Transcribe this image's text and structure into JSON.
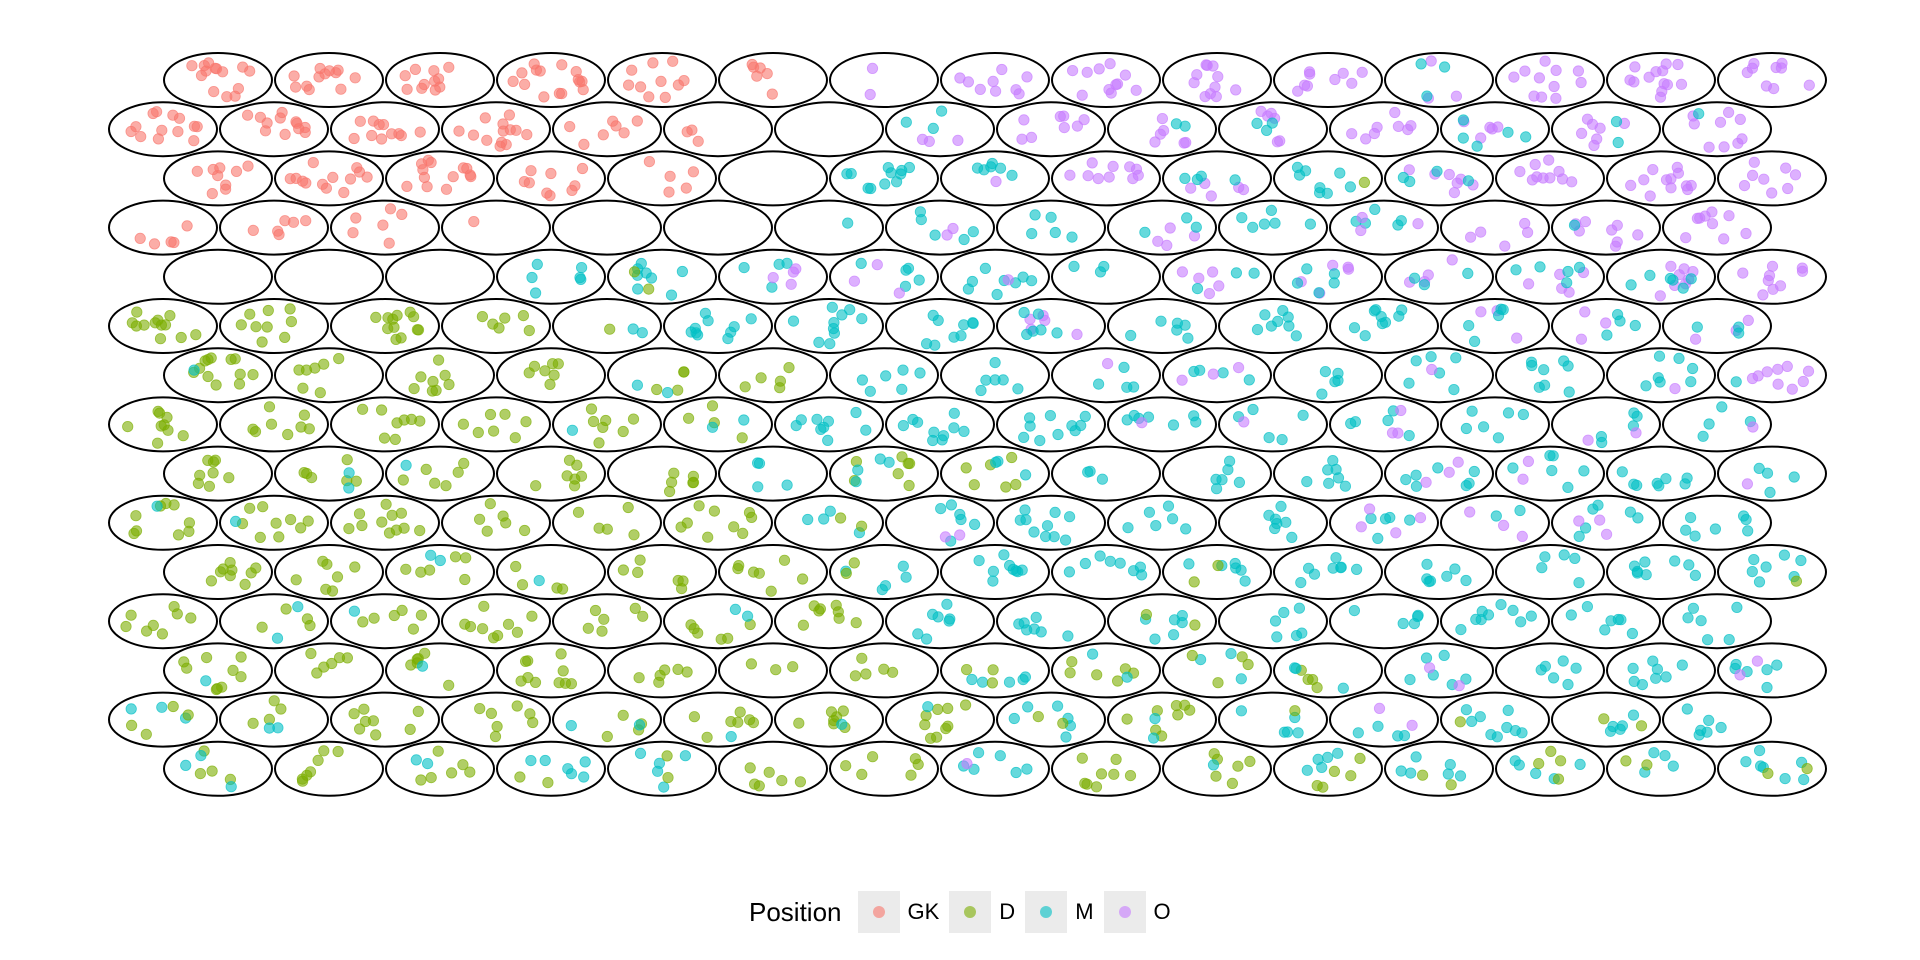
{
  "chart_data": {
    "type": "scatter",
    "subtype": "hexagonal grid of elliptical cells with jittered points",
    "grid": {
      "rows": 15,
      "columns_odd_rows": 15,
      "columns_even_rows": 15
    },
    "legend": {
      "title": "Position",
      "placement": "bottom",
      "entries": [
        {
          "key": "GK",
          "label": "GK",
          "color": "#F8766D"
        },
        {
          "key": "D",
          "label": "D",
          "color": "#7CAE00"
        },
        {
          "key": "M",
          "label": "M",
          "color": "#00BFC4"
        },
        {
          "key": "O",
          "label": "O",
          "color": "#C77CFF"
        }
      ]
    },
    "cells": [
      [
        "G14",
        "G12",
        "G11",
        "G15",
        "G10",
        "G6",
        "O2",
        "O9",
        "O11",
        "O11",
        "O9",
        "O3M3",
        "O11",
        "O13",
        "O9"
      ],
      [
        "G13",
        "G12",
        "G11",
        "G13",
        "G7",
        "G3",
        "",
        "M3O3",
        "O8",
        "O6M2",
        "O6M3",
        "O8",
        "O5M5",
        "O7M2",
        "O9M1"
      ],
      [
        "G9",
        "G13",
        "G13",
        "G9",
        "G5",
        "",
        "M11",
        "M6O1",
        "O10",
        "O5M4",
        "M8D1",
        "O7M4",
        "O10",
        "O12",
        "O8"
      ],
      [
        "G5",
        "G6",
        "G6",
        "G1",
        "",
        "",
        "M1",
        "M5O2",
        "M5",
        "O4M3",
        "M6",
        "M5O3",
        "O5",
        "O8M1",
        "O9"
      ],
      [
        "",
        "",
        "",
        "M6",
        "M8D2",
        "M4O4",
        "M5O3",
        "M8O1",
        "M3",
        "O5M3",
        "O5M5",
        "O4M3",
        "O5M5",
        "O8M6",
        "O9"
      ],
      [
        "D12",
        "D9",
        "D12",
        "D6",
        "M2D1",
        "M10",
        "M10",
        "M9",
        "O5M6",
        "M6",
        "M8",
        "M9",
        "O3M5",
        "M4O3",
        "O3M3"
      ],
      [
        "D12M1",
        "D7",
        "D8",
        "D7",
        "D4M2",
        "D5",
        "M6",
        "M6",
        "M4O1",
        "M4O3",
        "M5",
        "M6O1",
        "M8",
        "M7O1",
        "O9M1"
      ],
      [
        "D9",
        "D8",
        "D8",
        "D7",
        "D7M1",
        "D4M2",
        "M9",
        "M10",
        "M10",
        "M7O1",
        "M5O1",
        "M5O3",
        "M6",
        "M5O2",
        "M4O1"
      ],
      [
        "D8",
        "D6M2",
        "D6M1",
        "D7",
        "D6",
        "M4",
        "D7M4",
        "D6M3",
        "M3",
        "M6",
        "M7",
        "M7O3",
        "M6O2",
        "M8",
        "M4O1"
      ],
      [
        "D9M1",
        "D9M1",
        "D11",
        "D6",
        "D5",
        "D9",
        "M4D2",
        "M6O2",
        "M10",
        "M6",
        "M7",
        "M5O4",
        "O3M2",
        "M6O3",
        "M7"
      ],
      [
        "D9",
        "D7",
        "D6M2",
        "D4M1",
        "D6",
        "D7",
        "M5D2",
        "M9",
        "M8",
        "M6D2",
        "M8",
        "M7",
        "M5",
        "M8",
        "M7D1"
      ],
      [
        "D8",
        "D4M2",
        "D6M1",
        "D9",
        "D6",
        "D6M2",
        "D8",
        "M7",
        "M7",
        "M6D2",
        "M6",
        "M5",
        "M9",
        "M7",
        "M6"
      ],
      [
        "D9M1",
        "D6",
        "D6M1",
        "D10",
        "D6",
        "D3",
        "D5",
        "M5D3",
        "D6M2",
        "M3D4",
        "D4M3",
        "M6O2",
        "M6",
        "M8",
        "M6O2"
      ],
      [
        "M3D4",
        "D4M2",
        "D8",
        "D7",
        "D4M2",
        "D7M1",
        "D7M1",
        "D9M1",
        "M6D2",
        "D8M2",
        "M5D1",
        "M4O2",
        "M9D1",
        "M5D2",
        "M6"
      ],
      [
        "D4M3",
        "D7",
        "D6M2",
        "M6D2",
        "M5D2",
        "D6",
        "D6",
        "M6O1",
        "D8",
        "D6M1",
        "M5D5",
        "M6D2",
        "M5D4",
        "M4D2",
        "M7D2"
      ]
    ]
  }
}
